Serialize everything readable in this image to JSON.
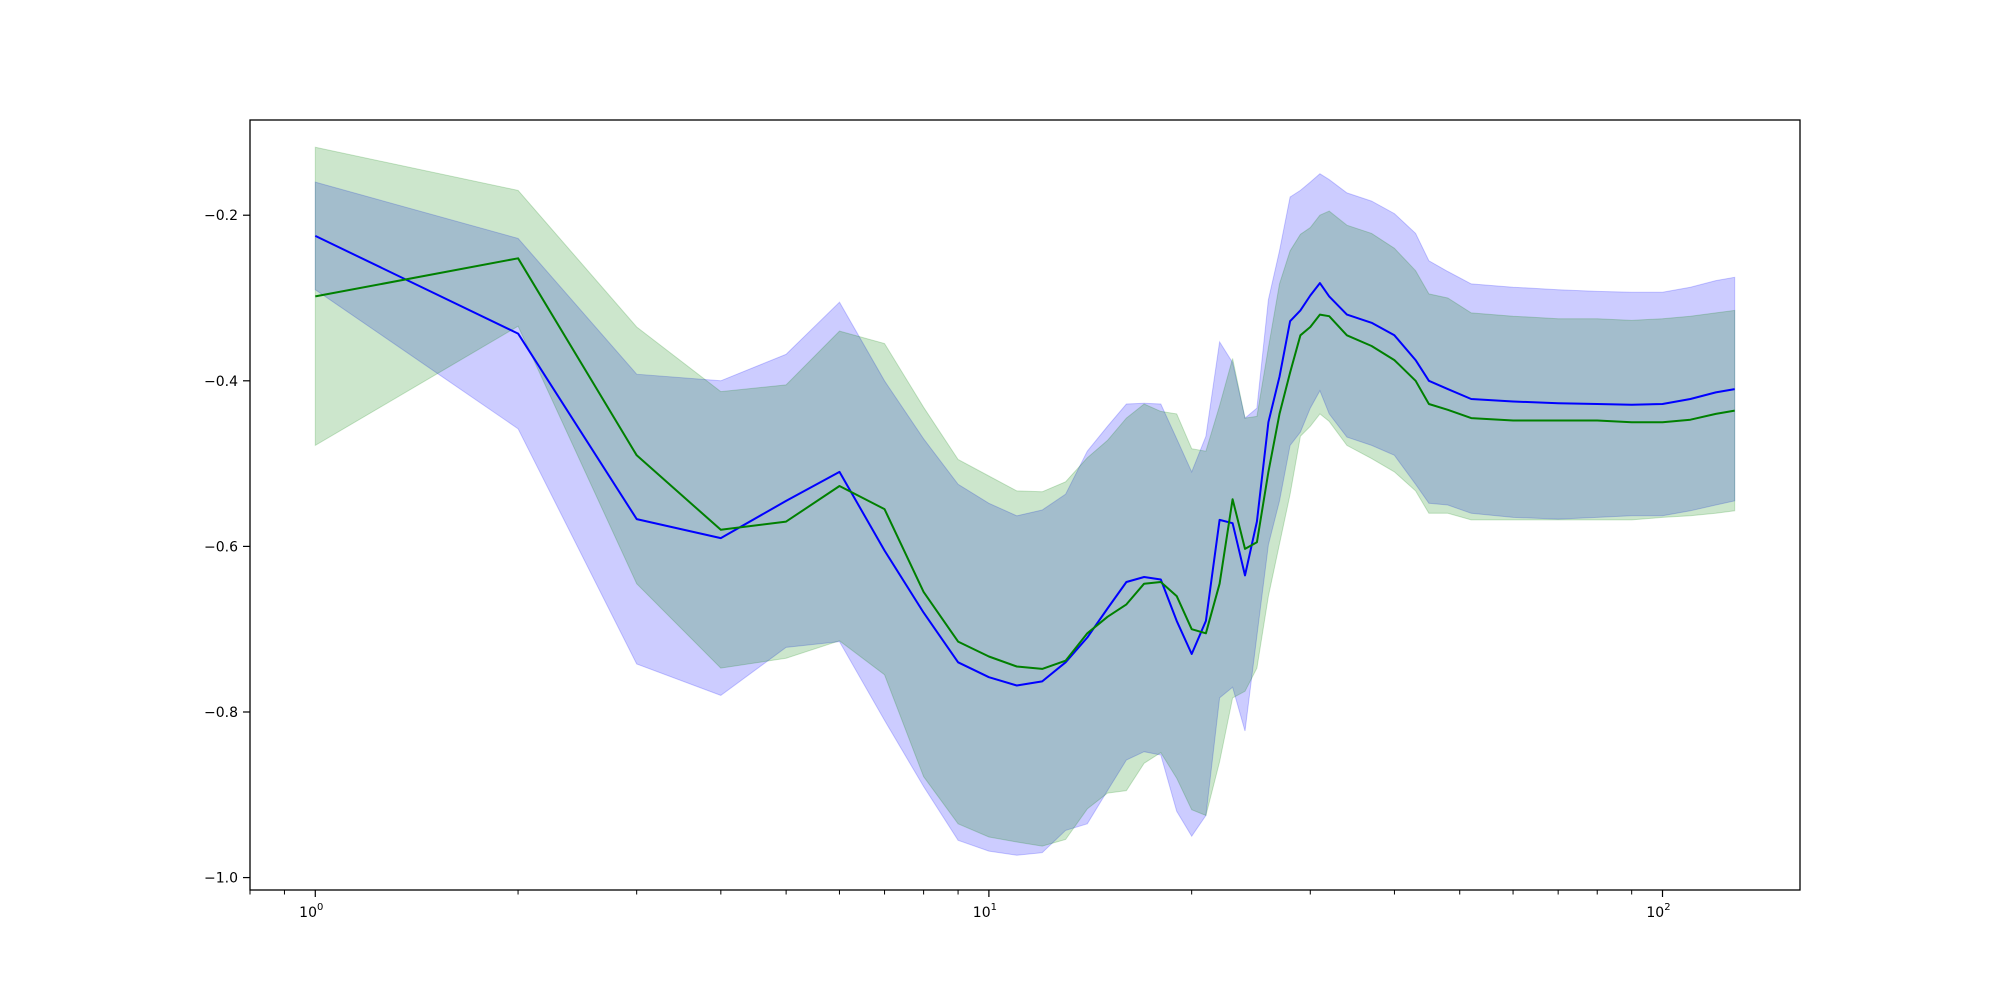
{
  "chart_data": {
    "type": "line",
    "xscale": "log",
    "xlim": [
      0.8,
      160
    ],
    "ylim": [
      -1.015,
      -0.085
    ],
    "grid": false,
    "legend": "none",
    "title": "",
    "xlabel": "",
    "ylabel": "",
    "x_ticks": [
      {
        "value": 1,
        "base": "10",
        "exp": "0"
      },
      {
        "value": 10,
        "base": "10",
        "exp": "1"
      },
      {
        "value": 100,
        "base": "10",
        "exp": "2"
      }
    ],
    "y_ticks": [
      {
        "value": -0.2,
        "label": "−0.2"
      },
      {
        "value": -0.4,
        "label": "−0.4"
      },
      {
        "value": -0.6,
        "label": "−0.6"
      },
      {
        "value": -0.8,
        "label": "−0.8"
      },
      {
        "value": -1.0,
        "label": "−1.0"
      }
    ],
    "series": [
      {
        "color": "#0000ff",
        "band_color": "#0000ff",
        "band_opacity": 0.2,
        "points": [
          [
            1,
            -0.225,
            -0.16,
            -0.29
          ],
          [
            2,
            -0.343,
            -0.228,
            -0.458
          ],
          [
            3,
            -0.567,
            -0.392,
            -0.742
          ],
          [
            4,
            -0.59,
            -0.4,
            -0.78
          ],
          [
            5,
            -0.545,
            -0.368,
            -0.722
          ],
          [
            6,
            -0.51,
            -0.305,
            -0.715
          ],
          [
            7,
            -0.605,
            -0.4,
            -0.81
          ],
          [
            8,
            -0.68,
            -0.47,
            -0.89
          ],
          [
            9,
            -0.74,
            -0.525,
            -0.955
          ],
          [
            10,
            -0.758,
            -0.548,
            -0.968
          ],
          [
            11,
            -0.768,
            -0.563,
            -0.973
          ],
          [
            12,
            -0.763,
            -0.556,
            -0.97
          ],
          [
            13,
            -0.74,
            -0.537,
            -0.943
          ],
          [
            14,
            -0.71,
            -0.485,
            -0.935
          ],
          [
            15,
            -0.675,
            -0.455,
            -0.895
          ],
          [
            16,
            -0.643,
            -0.428,
            -0.858
          ],
          [
            17,
            -0.637,
            -0.427,
            -0.848
          ],
          [
            18,
            -0.64,
            -0.428,
            -0.852
          ],
          [
            19,
            -0.69,
            -0.47,
            -0.92
          ],
          [
            20,
            -0.73,
            -0.51,
            -0.95
          ],
          [
            21,
            -0.69,
            -0.467,
            -0.925
          ],
          [
            22,
            -0.568,
            -0.353,
            -0.783
          ],
          [
            23,
            -0.572,
            -0.378,
            -0.77
          ],
          [
            24,
            -0.635,
            -0.445,
            -0.823
          ],
          [
            25,
            -0.57,
            -0.433,
            -0.708
          ],
          [
            26,
            -0.45,
            -0.302,
            -0.598
          ],
          [
            27,
            -0.395,
            -0.243,
            -0.545
          ],
          [
            28,
            -0.328,
            -0.178,
            -0.478
          ],
          [
            29,
            -0.315,
            -0.17,
            -0.462
          ],
          [
            30,
            -0.297,
            -0.16,
            -0.433
          ],
          [
            31,
            -0.282,
            -0.15,
            -0.412
          ],
          [
            32,
            -0.298,
            -0.157,
            -0.44
          ],
          [
            34,
            -0.32,
            -0.173,
            -0.468
          ],
          [
            37,
            -0.33,
            -0.183,
            -0.478
          ],
          [
            40,
            -0.345,
            -0.198,
            -0.49
          ],
          [
            43,
            -0.375,
            -0.222,
            -0.525
          ],
          [
            45,
            -0.4,
            -0.255,
            -0.548
          ],
          [
            48,
            -0.41,
            -0.268,
            -0.55
          ],
          [
            52,
            -0.422,
            -0.283,
            -0.56
          ],
          [
            60,
            -0.425,
            -0.287,
            -0.565
          ],
          [
            70,
            -0.427,
            -0.29,
            -0.567
          ],
          [
            80,
            -0.428,
            -0.292,
            -0.565
          ],
          [
            90,
            -0.429,
            -0.293,
            -0.563
          ],
          [
            100,
            -0.428,
            -0.293,
            -0.563
          ],
          [
            110,
            -0.422,
            -0.287,
            -0.557
          ],
          [
            120,
            -0.414,
            -0.279,
            -0.55
          ],
          [
            128,
            -0.41,
            -0.275,
            -0.545
          ]
        ]
      },
      {
        "color": "#008000",
        "band_color": "#008000",
        "band_opacity": 0.2,
        "points": [
          [
            1,
            -0.298,
            -0.118,
            -0.478
          ],
          [
            2,
            -0.252,
            -0.17,
            -0.334
          ],
          [
            3,
            -0.49,
            -0.335,
            -0.645
          ],
          [
            4,
            -0.58,
            -0.413,
            -0.747
          ],
          [
            5,
            -0.57,
            -0.405,
            -0.735
          ],
          [
            6,
            -0.527,
            -0.34,
            -0.714
          ],
          [
            7,
            -0.555,
            -0.355,
            -0.755
          ],
          [
            8,
            -0.655,
            -0.432,
            -0.878
          ],
          [
            9,
            -0.715,
            -0.495,
            -0.935
          ],
          [
            10,
            -0.733,
            -0.515,
            -0.951
          ],
          [
            11,
            -0.745,
            -0.533,
            -0.957
          ],
          [
            12,
            -0.748,
            -0.534,
            -0.962
          ],
          [
            13,
            -0.738,
            -0.522,
            -0.954
          ],
          [
            14,
            -0.705,
            -0.493,
            -0.917
          ],
          [
            15,
            -0.685,
            -0.472,
            -0.898
          ],
          [
            16,
            -0.67,
            -0.445,
            -0.895
          ],
          [
            17,
            -0.645,
            -0.428,
            -0.862
          ],
          [
            18,
            -0.643,
            -0.437,
            -0.849
          ],
          [
            19,
            -0.66,
            -0.44,
            -0.88
          ],
          [
            20,
            -0.7,
            -0.482,
            -0.918
          ],
          [
            21,
            -0.705,
            -0.485,
            -0.925
          ],
          [
            22,
            -0.645,
            -0.43,
            -0.86
          ],
          [
            23,
            -0.543,
            -0.373,
            -0.783
          ],
          [
            24,
            -0.603,
            -0.445,
            -0.775
          ],
          [
            25,
            -0.595,
            -0.443,
            -0.747
          ],
          [
            26,
            -0.51,
            -0.36,
            -0.66
          ],
          [
            27,
            -0.44,
            -0.283,
            -0.597
          ],
          [
            28,
            -0.39,
            -0.243,
            -0.537
          ],
          [
            29,
            -0.345,
            -0.223,
            -0.467
          ],
          [
            30,
            -0.335,
            -0.215,
            -0.455
          ],
          [
            31,
            -0.32,
            -0.2,
            -0.44
          ],
          [
            32,
            -0.322,
            -0.195,
            -0.449
          ],
          [
            34,
            -0.345,
            -0.212,
            -0.478
          ],
          [
            37,
            -0.358,
            -0.222,
            -0.494
          ],
          [
            40,
            -0.375,
            -0.24,
            -0.51
          ],
          [
            43,
            -0.4,
            -0.267,
            -0.533
          ],
          [
            45,
            -0.428,
            -0.295,
            -0.56
          ],
          [
            48,
            -0.435,
            -0.3,
            -0.56
          ],
          [
            52,
            -0.445,
            -0.318,
            -0.568
          ],
          [
            60,
            -0.448,
            -0.322,
            -0.568
          ],
          [
            70,
            -0.448,
            -0.325,
            -0.568
          ],
          [
            80,
            -0.448,
            -0.325,
            -0.568
          ],
          [
            90,
            -0.45,
            -0.327,
            -0.568
          ],
          [
            100,
            -0.45,
            -0.325,
            -0.565
          ],
          [
            110,
            -0.447,
            -0.322,
            -0.563
          ],
          [
            120,
            -0.44,
            -0.318,
            -0.56
          ],
          [
            128,
            -0.436,
            -0.315,
            -0.557
          ]
        ]
      }
    ]
  }
}
